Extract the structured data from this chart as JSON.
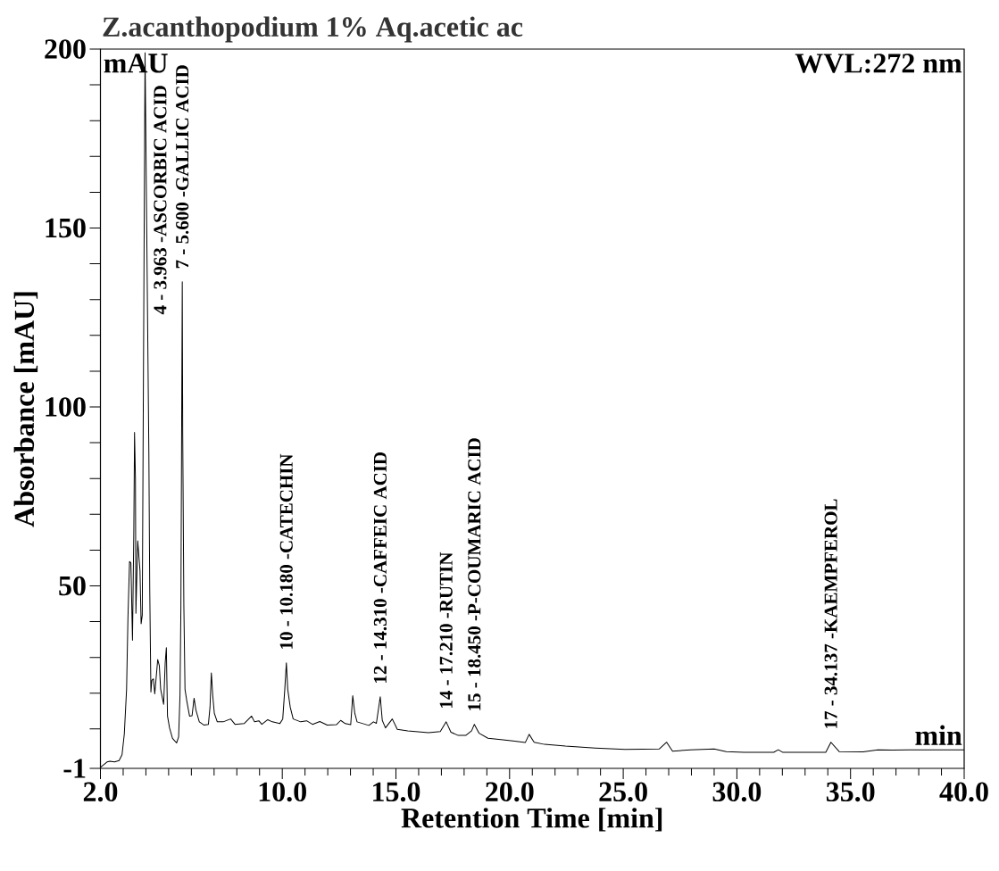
{
  "chart_data": {
    "type": "line",
    "title": "Z.acanthopodium 1% Aq.acetic ac",
    "xlabel": "Retention Time [min]",
    "ylabel": "Absorbance [mAU]",
    "color": "#000000",
    "xlim": [
      2,
      40
    ],
    "ylim": [
      -1,
      200
    ],
    "xticks": [
      {
        "value": 2,
        "label": "2.0"
      },
      {
        "value": 3,
        "label": null
      },
      {
        "value": 4,
        "label": null
      },
      {
        "value": 5,
        "label": null
      },
      {
        "value": 6,
        "label": null
      },
      {
        "value": 7,
        "label": null
      },
      {
        "value": 8,
        "label": null
      },
      {
        "value": 9,
        "label": null
      },
      {
        "value": 10,
        "label": "10.0"
      },
      {
        "value": 11,
        "label": null
      },
      {
        "value": 12,
        "label": null
      },
      {
        "value": 13,
        "label": null
      },
      {
        "value": 14,
        "label": null
      },
      {
        "value": 15,
        "label": "15.0"
      },
      {
        "value": 16,
        "label": null
      },
      {
        "value": 17,
        "label": null
      },
      {
        "value": 18,
        "label": null
      },
      {
        "value": 19,
        "label": null
      },
      {
        "value": 20,
        "label": "20.0"
      },
      {
        "value": 21,
        "label": null
      },
      {
        "value": 22,
        "label": null
      },
      {
        "value": 23,
        "label": null
      },
      {
        "value": 24,
        "label": null
      },
      {
        "value": 25,
        "label": "25.0"
      },
      {
        "value": 26,
        "label": null
      },
      {
        "value": 27,
        "label": null
      },
      {
        "value": 28,
        "label": null
      },
      {
        "value": 29,
        "label": null
      },
      {
        "value": 30,
        "label": "30.0"
      },
      {
        "value": 31,
        "label": null
      },
      {
        "value": 32,
        "label": null
      },
      {
        "value": 33,
        "label": null
      },
      {
        "value": 34,
        "label": null
      },
      {
        "value": 35,
        "label": "35.0"
      },
      {
        "value": 36,
        "label": null
      },
      {
        "value": 37,
        "label": null
      },
      {
        "value": 38,
        "label": null
      },
      {
        "value": 39,
        "label": null
      },
      {
        "value": 40,
        "label": "40.0"
      }
    ],
    "yticks": [
      -1,
      {
        "value": 10,
        "label": null
      },
      {
        "value": 20,
        "label": null
      },
      {
        "value": 30,
        "label": null
      },
      {
        "value": 40,
        "label": null
      },
      50,
      {
        "value": 60,
        "label": null
      },
      {
        "value": 70,
        "label": null
      },
      {
        "value": 80,
        "label": null
      },
      {
        "value": 90,
        "label": null
      },
      100,
      {
        "value": 110,
        "label": null
      },
      {
        "value": 120,
        "label": null
      },
      {
        "value": 130,
        "label": null
      },
      {
        "value": 140,
        "label": null
      },
      150,
      {
        "value": 160,
        "label": null
      },
      {
        "value": 170,
        "label": null
      },
      {
        "value": 180,
        "label": null
      },
      {
        "value": 190,
        "label": null
      },
      200
    ],
    "x": [
      2.0,
      2.29,
      2.42,
      2.62,
      2.82,
      2.95,
      3.05,
      3.15,
      3.21,
      3.28,
      3.34,
      3.41,
      3.47,
      3.5,
      3.54,
      3.56,
      3.64,
      3.74,
      3.79,
      3.84,
      3.89,
      3.963,
      4.09,
      4.13,
      4.17,
      4.22,
      4.26,
      4.33,
      4.39,
      4.52,
      4.59,
      4.65,
      4.78,
      4.85,
      4.9,
      4.95,
      5.04,
      5.17,
      5.35,
      5.44,
      5.5,
      5.54,
      5.6,
      5.62,
      5.67,
      5.72,
      5.8,
      5.92,
      6.03,
      6.12,
      6.2,
      6.35,
      6.55,
      6.75,
      6.82,
      6.88,
      6.94,
      7.01,
      7.14,
      7.4,
      7.73,
      7.92,
      8.32,
      8.65,
      8.78,
      8.97,
      9.1,
      9.36,
      9.56,
      9.89,
      10.02,
      10.11,
      10.18,
      10.24,
      10.35,
      10.48,
      10.81,
      11.07,
      11.33,
      11.65,
      11.98,
      12.38,
      12.57,
      12.77,
      13.01,
      13.1,
      13.19,
      13.29,
      13.81,
      14.01,
      14.14,
      14.31,
      14.4,
      14.54,
      14.84,
      15.06,
      15.52,
      16.43,
      16.95,
      17.21,
      17.42,
      17.74,
      18.07,
      18.33,
      18.45,
      18.66,
      19.05,
      19.71,
      20.23,
      20.69,
      20.86,
      21.08,
      21.54,
      22.46,
      23.77,
      25.08,
      26.58,
      26.91,
      27.17,
      27.96,
      29.0,
      29.53,
      30.31,
      31.62,
      31.82,
      32.01,
      33.91,
      34.137,
      34.5,
      35.55,
      36.2,
      36.86,
      38.04,
      40.0
    ],
    "values": [
      -0.7,
      0.8,
      1.0,
      0.8,
      1.2,
      2.8,
      8.6,
      21.1,
      41.0,
      56.8,
      56.4,
      34.8,
      65.9,
      92.9,
      80.0,
      42.3,
      62.6,
      54.3,
      39.4,
      41.8,
      105.8,
      199,
      114,
      87.5,
      48.6,
      20.3,
      23.6,
      24.0,
      19.8,
      29.4,
      27.7,
      21.1,
      16.9,
      28.6,
      32.7,
      13.6,
      10.3,
      7.4,
      6.1,
      7.8,
      19.4,
      44.3,
      135,
      92.5,
      44.3,
      21.1,
      17.8,
      13.6,
      13.7,
      18.6,
      15.3,
      12.0,
      11.1,
      11.3,
      16.1,
      25.7,
      19.4,
      14.4,
      12.0,
      12.0,
      12.8,
      11.3,
      11.5,
      13.6,
      12.0,
      12.3,
      11.3,
      12.6,
      12.0,
      11.5,
      12.8,
      21.1,
      28.5,
      21.1,
      16.1,
      12.8,
      12.0,
      12.3,
      11.3,
      12.1,
      11.1,
      11.2,
      12.4,
      11.5,
      11.2,
      19.3,
      14.4,
      12.0,
      11.0,
      12.0,
      11.6,
      19.0,
      12.4,
      10.3,
      12.8,
      9.9,
      9.5,
      9.0,
      9.3,
      12.0,
      9.1,
      8.2,
      8.2,
      9.5,
      11.3,
      8.8,
      7.4,
      7.0,
      6.6,
      6.2,
      8.5,
      6.3,
      5.7,
      5.2,
      4.7,
      4.3,
      4.4,
      6.3,
      3.8,
      4.2,
      4.4,
      3.7,
      3.5,
      3.5,
      4.2,
      3.5,
      3.5,
      6.3,
      3.7,
      3.6,
      4.2,
      4.1,
      4.2,
      4.2
    ],
    "annotations": [
      {
        "text": "4 - 3.963 -ASCORBIC ACID",
        "x": 3.963,
        "y": 199
      },
      {
        "text": "7 - 5.600 -GALLIC ACID",
        "x": 5.6,
        "y": 135
      },
      {
        "text": "10 - 10.180 -CATECHIN",
        "x": 10.18,
        "y": 28.5
      },
      {
        "text": "12 - 14.310 -CAFFEIC ACID",
        "x": 14.31,
        "y": 19.0
      },
      {
        "text": "14 - 17.210 -RUTIN",
        "x": 17.21,
        "y": 12.0
      },
      {
        "text": "15 - 18.450 -P-COUMARIC ACID",
        "x": 18.45,
        "y": 11.3
      },
      {
        "text": "17 - 34.137 -KAEMPFEROL",
        "x": 34.137,
        "y": 6.3
      },
      "mAU",
      "WVL:272 nm",
      "min"
    ]
  }
}
